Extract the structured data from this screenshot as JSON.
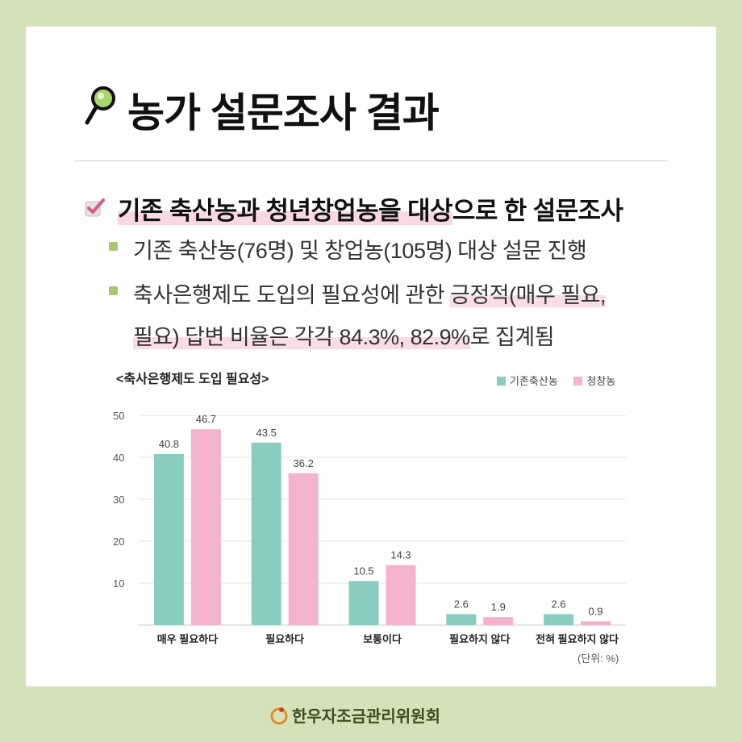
{
  "title": "농가 설문조사 결과",
  "headline": {
    "highlighted": "기존 축산농과 청년창업농을 대상",
    "rest": "으로 한 설문조사"
  },
  "bullets": [
    {
      "pre": "기존 축산농(76명) 및 창업농(105명) 대상 설문 진행",
      "hl": "",
      "post": ""
    },
    {
      "pre": "축사은행제도 도입의 필요성에 관한 ",
      "hl": "긍정적(매우 필요,",
      "post": ""
    },
    {
      "pre": "",
      "hl": "필요) 답변 비율은 각각 84.3%, 82.9%",
      "post": "로 집계됨"
    }
  ],
  "chart_data": {
    "type": "bar",
    "title": "<축사은행제도 도입 필요성>",
    "categories": [
      "매우 필요하다",
      "필요하다",
      "보통이다",
      "필요하지 않다",
      "전혀 필요하지 않다"
    ],
    "series": [
      {
        "name": "기존축산농",
        "values": [
          40.8,
          43.5,
          10.5,
          2.6,
          2.6
        ],
        "labels": [
          "40.8",
          "43.5",
          "10.5",
          "2.6",
          "2.6"
        ],
        "color": "#88cdbf"
      },
      {
        "name": "청창농",
        "values": [
          46.7,
          36.2,
          14.3,
          1.9,
          0.9
        ],
        "labels": [
          "46.7",
          "36.2",
          "14.3",
          "1.9",
          "0.9"
        ],
        "color": "#f4b3cc"
      }
    ],
    "ylim": [
      0,
      50
    ],
    "yticks": [
      "10",
      "20",
      "30",
      "40",
      "50"
    ],
    "unit_note": "(단위: %)",
    "grid": true,
    "legend_position": "top-right"
  },
  "footer": {
    "org": "한우자조금관리위원회"
  },
  "colors": {
    "background": "#d3e2b9",
    "highlight": "#f7d8e3",
    "bullet": "#a8c774"
  }
}
